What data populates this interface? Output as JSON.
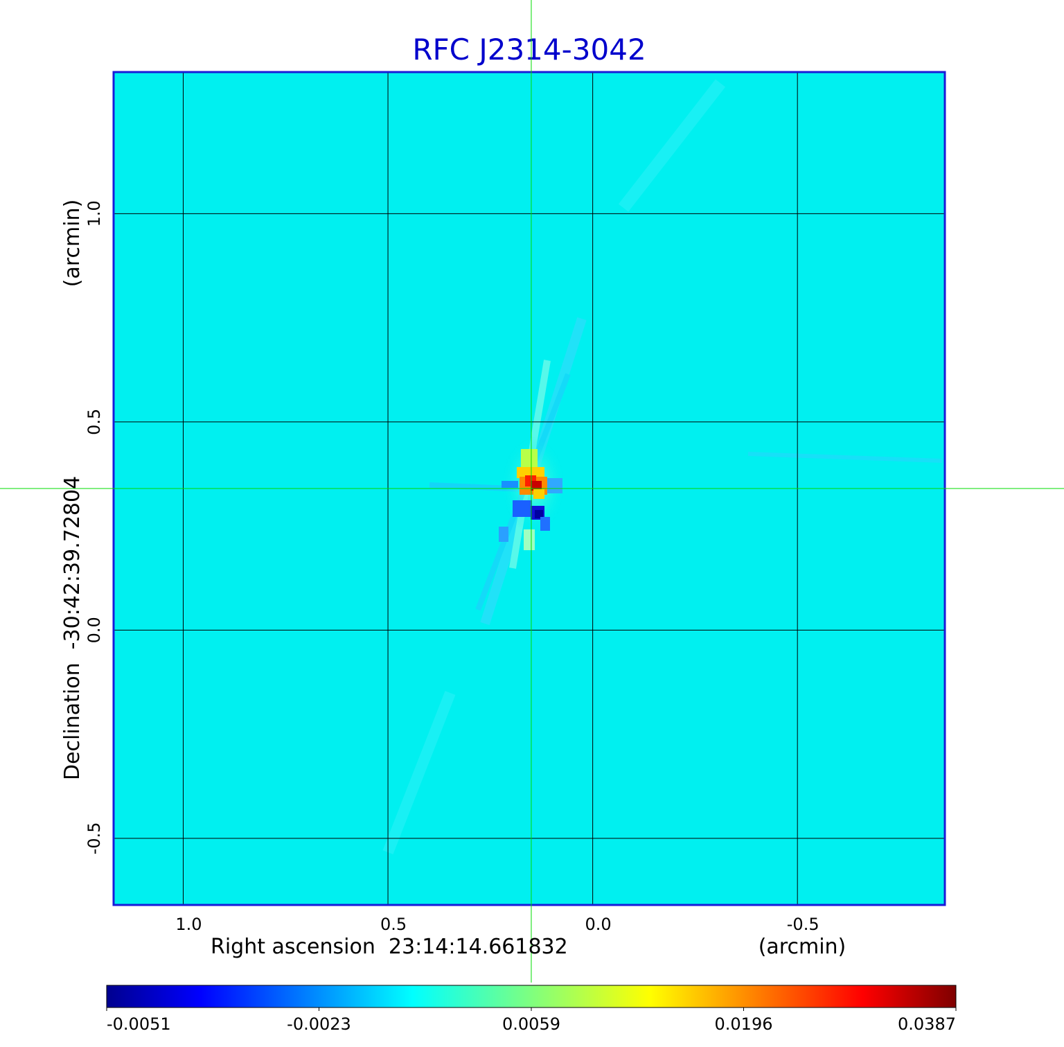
{
  "chart_data": {
    "type": "heatmap",
    "title": "RFC J2314-3042",
    "title_color": "#0000cc",
    "xlabel": "Right ascension  23:14:14.661832",
    "xunit": "(arcmin)",
    "ylabel": "Declination  -30:42:39.72804",
    "yunit": "(arcmin)",
    "x_ticks": [
      "1.0",
      "0.5",
      "0.0",
      "-0.5"
    ],
    "x_tick_values": [
      1.0,
      0.5,
      0.0,
      -0.5
    ],
    "y_ticks": [
      "1.0",
      "0.5",
      "0.0",
      "-0.5"
    ],
    "y_tick_values": [
      1.0,
      0.5,
      0.0,
      -0.5
    ],
    "xlim": [
      1.17,
      -0.86
    ],
    "ylim": [
      -0.66,
      1.34
    ],
    "grid": true,
    "crosshair": {
      "x": 0.15,
      "y": 0.34,
      "color": "#00dd00"
    },
    "source_peak": {
      "x": 0.15,
      "y": 0.35,
      "value": 0.0387
    },
    "colorbar": {
      "labels": [
        "-0.0051",
        "-0.0023",
        "0.0059",
        "0.0196",
        "0.0387"
      ],
      "min": -0.0051,
      "max": 0.0387,
      "colormap": "jet"
    },
    "frame_color": "#1a1ad8",
    "background_color": "#00f0f0"
  }
}
